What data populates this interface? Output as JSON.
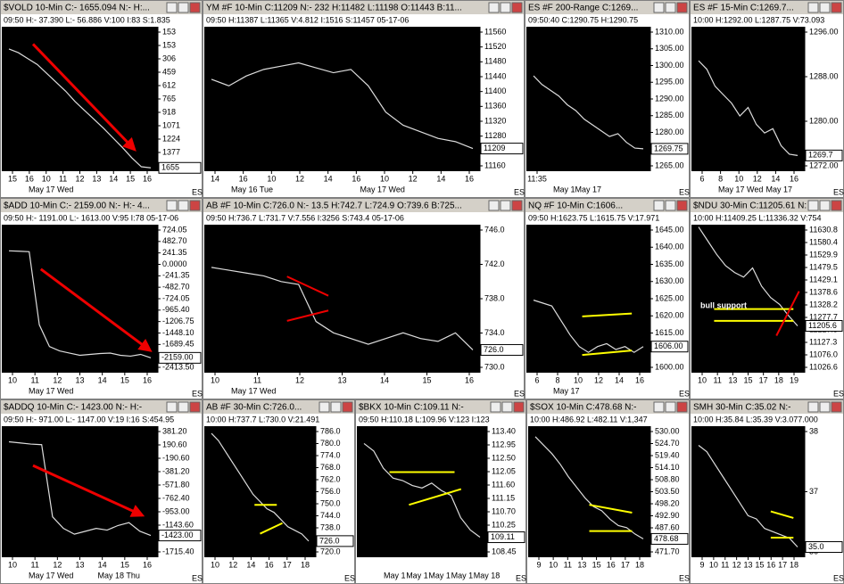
{
  "panels": [
    {
      "title": "$VOLD 10-Min C:- 1655.094 N:- H:...",
      "info": "09:50 H:- 37.390 L:- 56.886 V:100 I:83 S:1.835",
      "yticks": [
        "153",
        "153",
        "306",
        "459",
        "612",
        "765",
        "918",
        "1071",
        "1224",
        "1377",
        "1530"
      ],
      "last": "1655",
      "xlabels": [
        "15",
        "16",
        "10",
        "11",
        "12",
        "13",
        "14",
        "15",
        "16"
      ],
      "dates": [
        "May 17 Wed"
      ],
      "ylim": [
        250,
        -1700
      ],
      "price": [
        -50,
        -100,
        -180,
        -260,
        -380,
        -500,
        -620,
        -760,
        -880,
        -1000,
        -1120,
        -1250,
        -1380,
        -1520,
        -1640,
        -1655
      ]
    },
    {
      "title": "YM #F 10-Min C:11209 N:- 232 H:11482 L:11198 O:11443 B:11...",
      "info": "09:50 H:11387 L:11365 V:4.812 I:1516 S:11457 05-17-06",
      "yticks": [
        "11560",
        "11520",
        "11480",
        "11440",
        "11400",
        "11360",
        "11320",
        "11280",
        "11240",
        "11160"
      ],
      "last": "11209",
      "xlabels": [
        "14",
        "16",
        "10",
        "12",
        "14",
        "16",
        "10",
        "12",
        "14",
        "16"
      ],
      "dates": [
        "May 16 Tue",
        "May 17 Wed"
      ],
      "ylim": [
        11580,
        11140
      ],
      "price": [
        11420,
        11400,
        11430,
        11450,
        11460,
        11470,
        11455,
        11440,
        11450,
        11400,
        11320,
        11280,
        11260,
        11240,
        11230,
        11209
      ]
    },
    {
      "title": "ES #F 200-Range C:1269...",
      "info": "09:50:40 C:1290.75 H:1290.75",
      "yticks": [
        "1310.00",
        "1305.00",
        "1300.00",
        "1295.00",
        "1290.00",
        "1285.00",
        "1280.00",
        "1275.00",
        "1265.00"
      ],
      "last": "1269.75",
      "xlabels": [
        "11:35"
      ],
      "dates": [
        "May 1May 17"
      ],
      "ylim": [
        1312,
        1262
      ],
      "price": [
        1295,
        1292,
        1290,
        1288,
        1285,
        1283,
        1280,
        1278,
        1276,
        1274,
        1275,
        1272,
        1270,
        1269.75
      ]
    },
    {
      "title": "ES #F 15-Min C:1269.7...",
      "info": "10:00 H:1292.00 L:1287.75 V:73.093",
      "yticks": [
        "1296.00",
        "1288.00",
        "1280.00",
        "1272.00"
      ],
      "last": "1269.7",
      "xlabels": [
        "6",
        "8",
        "10",
        "12",
        "14",
        "16"
      ],
      "dates": [
        "May 17 Wed",
        "May 17"
      ],
      "ylim": [
        1300,
        1266
      ],
      "price": [
        1292,
        1290,
        1286,
        1284,
        1282,
        1279,
        1281,
        1277,
        1275,
        1276,
        1272,
        1270,
        1269.7
      ]
    },
    {
      "title": "$ADD 10-Min C:- 2159.00 N:- H:- 4...",
      "info": "09:50 H:- 1191.00 L:- 1613.00 V:95 I:78 05-17-06",
      "yticks": [
        "724.05",
        "482.70",
        "241.35",
        "0.0000",
        "-241.35",
        "-482.70",
        "-724.05",
        "-965.40",
        "-1206.75",
        "-1448.10",
        "-1689.45",
        "-1930.80",
        "-2413.50"
      ],
      "last": "-2159.00",
      "xlabels": [
        "10",
        "11",
        "12",
        "13",
        "14",
        "15",
        "16"
      ],
      "dates": [
        "May 17 Wed"
      ],
      "ylim": [
        900,
        -2500
      ],
      "price": [
        300,
        290,
        280,
        -1400,
        -1900,
        -2000,
        -2050,
        -2100,
        -2080,
        -2060,
        -2050,
        -2100,
        -2120,
        -2080,
        -2159
      ]
    },
    {
      "title": "AB #F 10-Min C:726.0 N:- 13.5 H:742.7 L:724.9 O:739.6 B:725...",
      "info": "09:50 H:736.7 L:731.7 V:7.556 I:3256 S:743.4 05-17-06",
      "yticks": [
        "746.0",
        "742.0",
        "738.0",
        "734.0",
        "730.0"
      ],
      "last": "726.0",
      "xlabels": [
        "10",
        "11",
        "12",
        "13",
        "14",
        "15",
        "16"
      ],
      "dates": [
        "May 17 Wed"
      ],
      "ylim": [
        748,
        722
      ],
      "price": [
        740.5,
        740,
        739.5,
        739,
        738,
        737.5,
        731,
        729,
        728,
        727,
        728,
        729,
        728,
        727.5,
        729,
        726
      ]
    },
    {
      "title": "NQ #F 10-Min C:1606...",
      "info": "09:50 H:1623.75 L:1615.75 V:17.971",
      "yticks": [
        "1645.00",
        "1640.00",
        "1635.00",
        "1630.00",
        "1625.00",
        "1620.00",
        "1615.00",
        "1610.00",
        "1600.00"
      ],
      "last": "1606.00",
      "xlabels": [
        "6",
        "8",
        "10",
        "12",
        "14",
        "16"
      ],
      "dates": [
        "May 17"
      ],
      "ylim": [
        1648,
        1597
      ],
      "price": [
        1622,
        1621,
        1620,
        1615,
        1610,
        1606,
        1604,
        1606,
        1607,
        1605,
        1606,
        1604,
        1606
      ]
    },
    {
      "title": "$NDU 30-Min C:11205.61 N:-",
      "info": "10:00 H:11409.25 L:11336.32 V:754",
      "yticks": [
        "11630.8",
        "11580.4",
        "11529.9",
        "11479.5",
        "11429.1",
        "11378.6",
        "11328.2",
        "11277.7",
        "11227.3",
        "11127.3",
        "11076.0",
        "11026.6"
      ],
      "last": "11205.6",
      "xlabels": [
        "10",
        "11",
        "13",
        "15",
        "17",
        "18",
        "19"
      ],
      "dates": [],
      "ylim": [
        11650,
        11000
      ],
      "price": [
        11640,
        11580,
        11520,
        11470,
        11440,
        11420,
        11460,
        11380,
        11330,
        11300,
        11250,
        11205.61
      ],
      "annotation": "bull support"
    },
    {
      "title": "$ADDQ 10-Min C:- 1423.00 N:- H:-",
      "info": "09:50 H:- 971.00 L:- 1147.00 V:19 I:16 S:454.95",
      "yticks": [
        "381.20",
        "190.60",
        "-190.60",
        "-381.20",
        "-571.80",
        "-762.40",
        "-953.00",
        "-1143.60",
        "-1524.80",
        "-1715.40"
      ],
      "last": "-1423.00",
      "xlabels": [
        "10",
        "11",
        "12",
        "13",
        "14",
        "15",
        "16"
      ],
      "dates": [
        "May 17 Wed",
        "May 18 Thu"
      ],
      "ylim": [
        470,
        -1800
      ],
      "price": [
        200,
        180,
        160,
        150,
        -1100,
        -1300,
        -1400,
        -1350,
        -1300,
        -1330,
        -1250,
        -1200,
        -1350,
        -1423
      ]
    },
    {
      "title": "AB #F 30-Min C:726.0...",
      "info": "10:00 H:737.7 L:730.0 V:21.491",
      "yticks": [
        "786.0",
        "780.0",
        "774.0",
        "768.0",
        "762.0",
        "756.0",
        "750.0",
        "744.0",
        "738.0",
        "732.0",
        "720.0"
      ],
      "last": "726.0",
      "xlabels": [
        "10",
        "12",
        "14",
        "16",
        "17",
        "18"
      ],
      "dates": [],
      "ylim": [
        790,
        717
      ],
      "price": [
        786,
        782,
        776,
        770,
        764,
        758,
        752,
        748,
        744,
        742,
        738,
        734,
        732,
        730,
        726
      ]
    },
    {
      "title": "$BKX 10-Min C:109.11 N:-",
      "info": "09:50 H:110.18 L:109.96 V:123 I:123",
      "yticks": [
        "113.40",
        "112.95",
        "112.50",
        "112.05",
        "111.60",
        "111.15",
        "110.70",
        "110.25",
        "109.80",
        "108.45"
      ],
      "last": "109.11",
      "xlabels": [],
      "dates": [
        "May 1",
        "May 1",
        "May 1",
        "May 1",
        "May 18"
      ],
      "ylim": [
        113.6,
        108.3
      ],
      "price": [
        112.9,
        112.6,
        111.9,
        111.5,
        111.4,
        111.2,
        111.1,
        111.3,
        111,
        110.8,
        109.9,
        109.4,
        109.11
      ]
    },
    {
      "title": "$SOX 10-Min C:478.68 N:-",
      "info": "10:00 H:486.92 L:482.11 V:1,347",
      "yticks": [
        "530.00",
        "524.70",
        "519.40",
        "514.10",
        "508.80",
        "503.50",
        "498.20",
        "492.90",
        "487.60",
        "482.30",
        "471.70"
      ],
      "last": "478.68",
      "xlabels": [
        "9",
        "10",
        "11",
        "13",
        "15",
        "16",
        "17",
        "18"
      ],
      "dates": [],
      "ylim": [
        532,
        470
      ],
      "price": [
        527,
        523,
        519,
        514,
        508,
        503,
        498,
        494,
        492,
        488,
        485,
        484,
        481,
        478.68
      ]
    },
    {
      "title": "SMH 30-Min C:35.02 N:-",
      "info": "10:00 H:35.84 L:35.39 V:3.077.000",
      "yticks": [
        "38",
        "37",
        "36"
      ],
      "last": "35.0",
      "xlabels": [
        "9",
        "10",
        "11",
        "12",
        "13",
        "15",
        "16",
        "17",
        "18"
      ],
      "dates": [],
      "ylim": [
        38.8,
        34.7
      ],
      "price": [
        38.2,
        38,
        37.6,
        37.2,
        36.8,
        36.4,
        36,
        35.9,
        35.6,
        35.5,
        35.4,
        35.3,
        35.02
      ]
    }
  ]
}
